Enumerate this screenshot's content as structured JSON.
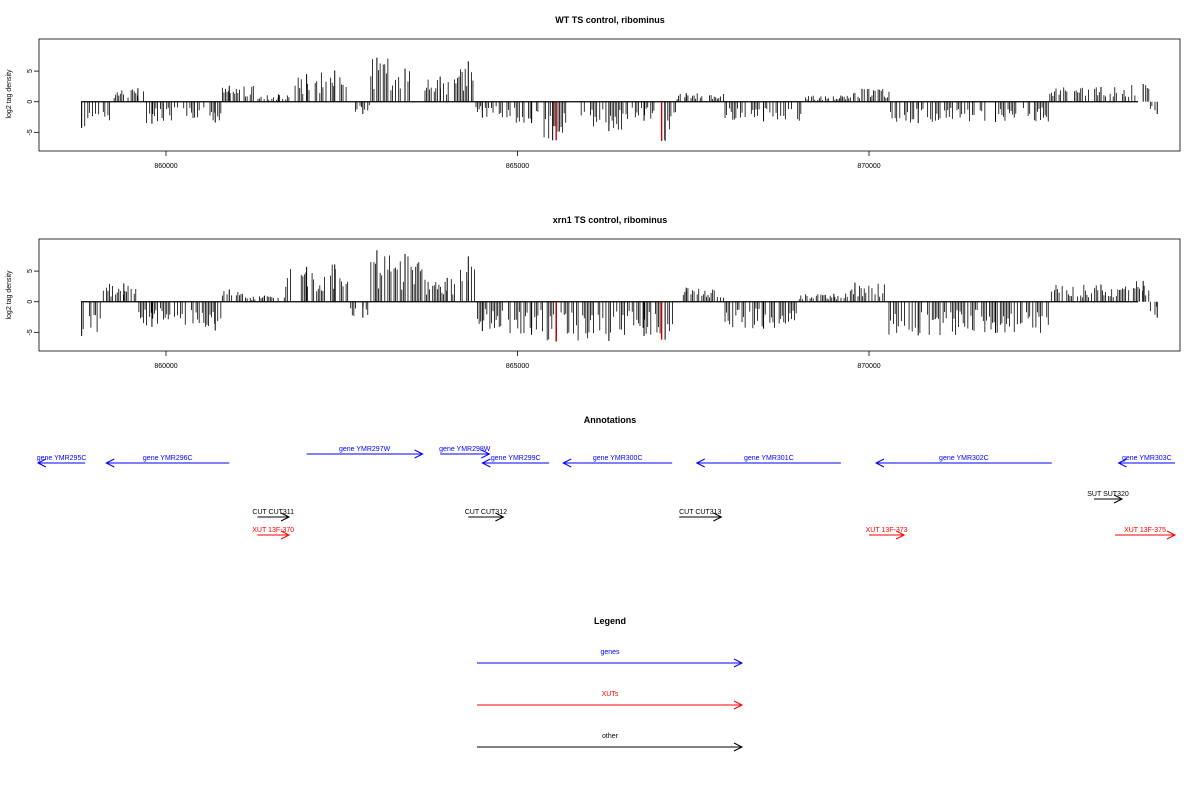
{
  "chart_data": [
    {
      "type": "bar",
      "title": "WT TS control, ribominus",
      "ylabel": "log2 tag density",
      "xlabel": "",
      "xlim": [
        858200,
        874700
      ],
      "ylim": [
        -7,
        9
      ],
      "x_ticks": [
        860000,
        865000,
        870000
      ],
      "y_ticks": [
        -5,
        0,
        5
      ],
      "bars": [
        {
          "x": 858800,
          "y": -4.3
        },
        {
          "x": 859600,
          "y": 2.2
        },
        {
          "x": 859800,
          "y": -3.6
        },
        {
          "x": 860700,
          "y": -3.4
        },
        {
          "x": 860900,
          "y": 2.6
        },
        {
          "x": 861600,
          "y": 1.2
        },
        {
          "x": 862000,
          "y": 4.5
        },
        {
          "x": 862400,
          "y": 5.1
        },
        {
          "x": 862800,
          "y": -2.0
        },
        {
          "x": 863000,
          "y": 7.2
        },
        {
          "x": 863400,
          "y": 5.4
        },
        {
          "x": 863900,
          "y": 4.1
        },
        {
          "x": 864300,
          "y": 6.6
        },
        {
          "x": 864500,
          "y": -2.6
        },
        {
          "x": 865200,
          "y": -3.5
        },
        {
          "x": 865500,
          "y": -6.3
        },
        {
          "x": 866300,
          "y": -4.8
        },
        {
          "x": 866800,
          "y": -3.1
        },
        {
          "x": 867100,
          "y": -6.4
        },
        {
          "x": 867400,
          "y": 1.4
        },
        {
          "x": 868500,
          "y": -3.2
        },
        {
          "x": 869600,
          "y": 1.0
        },
        {
          "x": 869900,
          "y": 2.1
        },
        {
          "x": 870700,
          "y": -3.5
        },
        {
          "x": 871800,
          "y": -3.3
        },
        {
          "x": 873300,
          "y": 2.4
        },
        {
          "x": 873900,
          "y": 2.9
        },
        {
          "x": 874100,
          "y": -2.0
        }
      ],
      "highlighted": [
        {
          "x": 865550,
          "y": -6.3
        },
        {
          "x": 867050,
          "y": -6.4
        }
      ]
    },
    {
      "type": "bar",
      "title": "xrn1 TS control, ribominus",
      "ylabel": "log2 tag density",
      "xlabel": "",
      "xlim": [
        858200,
        874700
      ],
      "ylim": [
        -7,
        9
      ],
      "x_ticks": [
        860000,
        865000,
        870000
      ],
      "y_ticks": [
        -5,
        0,
        5
      ],
      "bars": [
        {
          "x": 858800,
          "y": -5.6
        },
        {
          "x": 859400,
          "y": 3.0
        },
        {
          "x": 859800,
          "y": -4.1
        },
        {
          "x": 860700,
          "y": -4.7
        },
        {
          "x": 860900,
          "y": 2.0
        },
        {
          "x": 861400,
          "y": 1.0
        },
        {
          "x": 862000,
          "y": 5.7
        },
        {
          "x": 862400,
          "y": 6.1
        },
        {
          "x": 862800,
          "y": -2.6
        },
        {
          "x": 863000,
          "y": 8.4
        },
        {
          "x": 863400,
          "y": 7.8
        },
        {
          "x": 864000,
          "y": 3.9
        },
        {
          "x": 864300,
          "y": 7.4
        },
        {
          "x": 864500,
          "y": -4.8
        },
        {
          "x": 865200,
          "y": -5.4
        },
        {
          "x": 865550,
          "y": -6.5
        },
        {
          "x": 866300,
          "y": -6.4
        },
        {
          "x": 866800,
          "y": -5.6
        },
        {
          "x": 867100,
          "y": -6.2
        },
        {
          "x": 867400,
          "y": 2.3
        },
        {
          "x": 868500,
          "y": -4.4
        },
        {
          "x": 869500,
          "y": 1.3
        },
        {
          "x": 869800,
          "y": 3.1
        },
        {
          "x": 870700,
          "y": -5.5
        },
        {
          "x": 871800,
          "y": -5.1
        },
        {
          "x": 873300,
          "y": 2.8
        },
        {
          "x": 873900,
          "y": 3.4
        },
        {
          "x": 874100,
          "y": -2.6
        }
      ],
      "highlighted": [
        {
          "x": 865550,
          "y": -6.5
        },
        {
          "x": 867050,
          "y": -6.2
        }
      ]
    }
  ],
  "annotations": {
    "title": "Annotations",
    "features": [
      {
        "label": "gene YMR295C",
        "color": "#0000ff",
        "strand": "-",
        "row": 0,
        "start": 858100,
        "end": 858850
      },
      {
        "label": "gene YMR296C",
        "color": "#0000ff",
        "strand": "-",
        "row": 0,
        "start": 859150,
        "end": 860900
      },
      {
        "label": "gene YMR297W",
        "color": "#0000ff",
        "strand": "+",
        "row": -0.5,
        "start": 862000,
        "end": 863650
      },
      {
        "label": "gene YMR298W",
        "color": "#0000ff",
        "strand": "+",
        "row": -0.5,
        "start": 863900,
        "end": 864600
      },
      {
        "label": "gene YMR299C",
        "color": "#0000ff",
        "strand": "-",
        "row": 0,
        "start": 864500,
        "end": 865450
      },
      {
        "label": "gene YMR300C",
        "color": "#0000ff",
        "strand": "-",
        "row": 0,
        "start": 865650,
        "end": 867200
      },
      {
        "label": "gene YMR301C",
        "color": "#0000ff",
        "strand": "-",
        "row": 0,
        "start": 867550,
        "end": 869600
      },
      {
        "label": "gene YMR302C",
        "color": "#0000ff",
        "strand": "-",
        "row": 0,
        "start": 870100,
        "end": 872600
      },
      {
        "label": "gene YMR303C",
        "color": "#0000ff",
        "strand": "-",
        "row": 0,
        "start": 873550,
        "end": 874700
      },
      {
        "label": "SUT SUT320",
        "color": "#000000",
        "strand": "+",
        "row": 2,
        "start": 873200,
        "end": 873600
      },
      {
        "label": "CUT CUT311",
        "color": "#000000",
        "strand": "+",
        "row": 3,
        "start": 861300,
        "end": 861750
      },
      {
        "label": "CUT CUT312",
        "color": "#000000",
        "strand": "+",
        "row": 3,
        "start": 864300,
        "end": 864800
      },
      {
        "label": "CUT CUT313",
        "color": "#000000",
        "strand": "+",
        "row": 3,
        "start": 867300,
        "end": 867900
      },
      {
        "label": "XUT 13F-370",
        "color": "#ff0000",
        "strand": "+",
        "row": 4,
        "start": 861300,
        "end": 861750
      },
      {
        "label": "XUT 13F-373",
        "color": "#ff0000",
        "strand": "+",
        "row": 4,
        "start": 870000,
        "end": 870500
      },
      {
        "label": "XUT 13F-375",
        "color": "#ff0000",
        "strand": "+",
        "row": 4,
        "start": 873500,
        "end": 874600
      }
    ]
  },
  "legend": {
    "title": "Legend",
    "items": [
      {
        "label": "genes",
        "color": "#0000ff"
      },
      {
        "label": "XUTs",
        "color": "#ff0000"
      },
      {
        "label": "other",
        "color": "#000000"
      }
    ]
  },
  "colors": {
    "bar": "#000000",
    "highlight": "#cc0000",
    "frame": "#000000"
  }
}
